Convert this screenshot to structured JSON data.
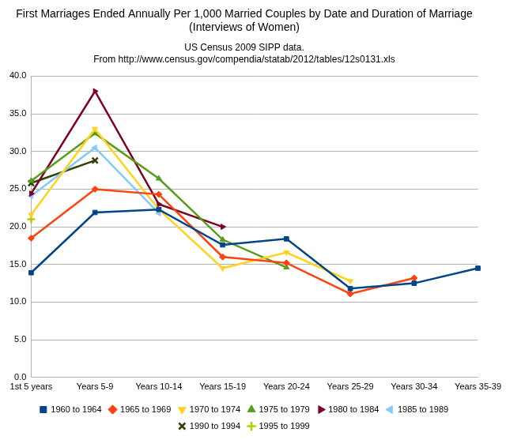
{
  "chart_data": {
    "type": "line",
    "title": [
      "First Marriages Ended Annually Per 1,000 Married Couples by Date and Duration of Marriage",
      "(Interviews of Women)"
    ],
    "subtitle": [
      "US Census 2009 SIPP data.",
      "From http://www.census.gov/compendia/statab/2012/tables/12s0131.xls"
    ],
    "categories": [
      "1st 5 years",
      "Years 5-9",
      "Years 10-14",
      "Years 15-19",
      "Years 20-24",
      "Years 25-29",
      "Years 30-34",
      "Years 35-39"
    ],
    "series": [
      {
        "name": "1960 to 1964",
        "color": "#004586",
        "marker": "square",
        "values": [
          13.9,
          21.9,
          22.3,
          17.6,
          18.4,
          11.8,
          12.5,
          14.5
        ]
      },
      {
        "name": "1965 to 1969",
        "color": "#ff420e",
        "marker": "diamond",
        "values": [
          18.5,
          25.0,
          24.3,
          16.0,
          15.2,
          11.1,
          13.2,
          null
        ]
      },
      {
        "name": "1970 to 1974",
        "color": "#ffd320",
        "marker": "triangle-down",
        "values": [
          21.6,
          33.0,
          22.3,
          14.5,
          16.6,
          12.8,
          null,
          null
        ]
      },
      {
        "name": "1975 to 1979",
        "color": "#579d1c",
        "marker": "triangle-up",
        "values": [
          26.1,
          32.4,
          26.4,
          18.3,
          14.6,
          null,
          null,
          null
        ]
      },
      {
        "name": "1980 to 1984",
        "color": "#7e0021",
        "marker": "triangle-right",
        "values": [
          24.4,
          38.0,
          23.0,
          20.0,
          null,
          null,
          null,
          null
        ]
      },
      {
        "name": "1985 to 1989",
        "color": "#83caff",
        "marker": "triangle-left",
        "values": [
          24.1,
          30.5,
          21.8,
          null,
          null,
          null,
          null,
          null
        ]
      },
      {
        "name": "1990 to 1994",
        "color": "#314004",
        "marker": "bowtie",
        "values": [
          25.8,
          28.8,
          null,
          null,
          null,
          null,
          null,
          null
        ]
      },
      {
        "name": "1995 to 1999",
        "color": "#aecf00",
        "marker": "hourglass",
        "values": [
          21.0,
          null,
          null,
          null,
          null,
          null,
          null,
          null
        ]
      }
    ],
    "ylim": [
      0,
      40
    ],
    "yticks": [
      {
        "value": 0,
        "label": "0.0"
      },
      {
        "value": 5,
        "label": "5.0"
      },
      {
        "value": 10,
        "label": "10.0"
      },
      {
        "value": 15,
        "label": "15.0"
      },
      {
        "value": 20,
        "label": "20.0"
      },
      {
        "value": 25,
        "label": "25.0"
      },
      {
        "value": 30,
        "label": "30.0"
      },
      {
        "value": 35,
        "label": "35.0"
      },
      {
        "value": 40,
        "label": "40.0"
      }
    ],
    "grid": true,
    "legend": "bottom"
  }
}
